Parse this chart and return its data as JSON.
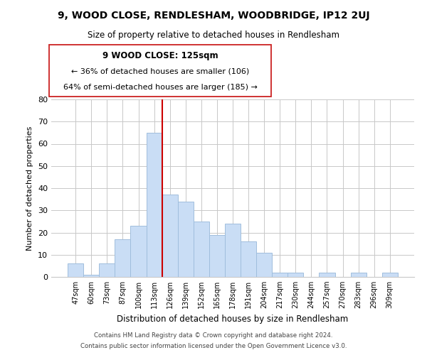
{
  "title": "9, WOOD CLOSE, RENDLESHAM, WOODBRIDGE, IP12 2UJ",
  "subtitle": "Size of property relative to detached houses in Rendlesham",
  "xlabel": "Distribution of detached houses by size in Rendlesham",
  "ylabel": "Number of detached properties",
  "bar_labels": [
    "47sqm",
    "60sqm",
    "73sqm",
    "87sqm",
    "100sqm",
    "113sqm",
    "126sqm",
    "139sqm",
    "152sqm",
    "165sqm",
    "178sqm",
    "191sqm",
    "204sqm",
    "217sqm",
    "230sqm",
    "244sqm",
    "257sqm",
    "270sqm",
    "283sqm",
    "296sqm",
    "309sqm"
  ],
  "bar_values": [
    6,
    1,
    6,
    17,
    23,
    65,
    37,
    34,
    25,
    19,
    24,
    16,
    11,
    2,
    2,
    0,
    2,
    0,
    2,
    0,
    2
  ],
  "bar_color": "#c9ddf5",
  "bar_edge_color": "#a0bedd",
  "vline_color": "#cc0000",
  "annotation_title": "9 WOOD CLOSE: 125sqm",
  "annotation_line1": "← 36% of detached houses are smaller (106)",
  "annotation_line2": "64% of semi-detached houses are larger (185) →",
  "ylim": [
    0,
    80
  ],
  "yticks": [
    0,
    10,
    20,
    30,
    40,
    50,
    60,
    70,
    80
  ],
  "footnote1": "Contains HM Land Registry data © Crown copyright and database right 2024.",
  "footnote2": "Contains public sector information licensed under the Open Government Licence v3.0.",
  "background_color": "#ffffff",
  "grid_color": "#c8c8c8"
}
